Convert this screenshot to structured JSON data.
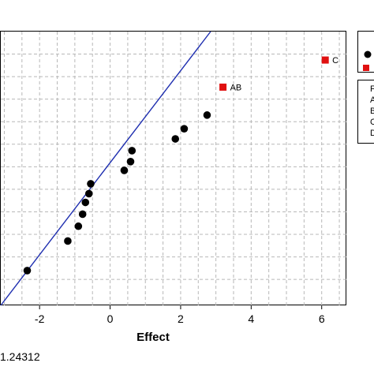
{
  "chart_data": {
    "type": "scatter",
    "title": "",
    "xlabel": "Effect",
    "ylabel": "",
    "xlim": [
      -3.1,
      6.7
    ],
    "ylim": [
      0,
      1
    ],
    "x_ticks": [
      -2,
      0,
      2,
      4,
      6
    ],
    "x_tick_labels": [
      "-2",
      "0",
      "2",
      "4",
      "6"
    ],
    "grid": true,
    "legend_placement": "right",
    "reference_line": {
      "x": [
        -3.1,
        2.85
      ],
      "y": [
        0.0,
        1.0
      ],
      "color": "#1f2fb0"
    },
    "series": [
      {
        "kind": "not-significant",
        "marker": "circle",
        "color": "#000000",
        "points": [
          {
            "x": -2.35,
            "y": 0.127
          },
          {
            "x": -1.2,
            "y": 0.235
          },
          {
            "x": -0.9,
            "y": 0.289
          },
          {
            "x": -0.78,
            "y": 0.333
          },
          {
            "x": -0.7,
            "y": 0.376
          },
          {
            "x": -0.6,
            "y": 0.408
          },
          {
            "x": -0.55,
            "y": 0.444
          },
          {
            "x": 0.4,
            "y": 0.493
          },
          {
            "x": 0.58,
            "y": 0.525
          },
          {
            "x": 0.62,
            "y": 0.565
          },
          {
            "x": 1.85,
            "y": 0.608
          },
          {
            "x": 2.1,
            "y": 0.645
          },
          {
            "x": 2.75,
            "y": 0.695
          }
        ]
      },
      {
        "kind": "significant",
        "marker": "square",
        "color": "#e01010",
        "points": [
          {
            "x": 3.2,
            "y": 0.797,
            "label": "AB"
          },
          {
            "x": 6.1,
            "y": 0.896,
            "label": "C"
          }
        ]
      }
    ],
    "legend_fragments": [
      "F",
      "A",
      "B",
      "C",
      "D"
    ]
  },
  "footnote": "1.24312"
}
